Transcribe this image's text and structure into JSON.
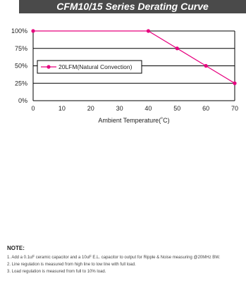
{
  "title": "CFM10/15 Series Derating Curve",
  "chart_data": {
    "type": "line",
    "xlabel": "Ambient Temperature(˚C)",
    "ylabel": "",
    "xlim": [
      0,
      70
    ],
    "ylim": [
      0,
      100
    ],
    "x_ticks": [
      0,
      10,
      20,
      30,
      40,
      50,
      60,
      70
    ],
    "y_ticks": [
      0,
      25,
      50,
      75,
      100
    ],
    "y_tick_suffix": "%",
    "grid": "horizontal",
    "legend_position": "center-left",
    "series": [
      {
        "name": "20LFM(Natural Convection)",
        "color": "#e6007e",
        "x": [
          0,
          40,
          50,
          60,
          70
        ],
        "y": [
          100,
          100,
          75,
          50,
          25
        ]
      }
    ]
  },
  "notes": {
    "heading": "NOTE:",
    "items": [
      "1. Add a 0.1uF ceramic capacitor and a 10uF E.L. capacitor to output for Ripple & Noise measuring @20MHz BW.",
      "2. Line regulation is measured from high line to low line with full load.",
      "3. Load regulation is measured from full to 10% load."
    ]
  }
}
